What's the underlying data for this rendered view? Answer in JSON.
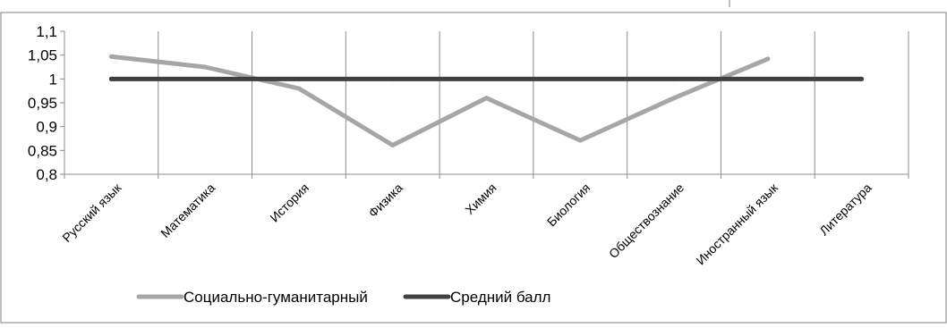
{
  "chart_data": {
    "type": "line",
    "categories": [
      "Русский язык",
      "Математика",
      "История",
      "Физика",
      "Химия",
      "Биология",
      "Обществознание",
      "Иностранный язык",
      "Литература"
    ],
    "ylim": [
      0.8,
      1.1
    ],
    "yticks": [
      "1,1",
      "1,05",
      "1",
      "0,95",
      "0,9",
      "0,85",
      "0,8"
    ],
    "grid": "vertical category lines",
    "legend_position": "bottom",
    "series": [
      {
        "name": "Социально-гуманитарный",
        "color": "#a6a6a6",
        "values": [
          1.047,
          1.025,
          0.98,
          0.861,
          0.96,
          0.871,
          0.96,
          1.042,
          null
        ]
      },
      {
        "name": "Средний балл",
        "color": "#404040",
        "values": [
          1.0,
          1.0,
          1.0,
          1.0,
          1.0,
          1.0,
          1.0,
          1.0,
          1.0
        ]
      }
    ]
  }
}
